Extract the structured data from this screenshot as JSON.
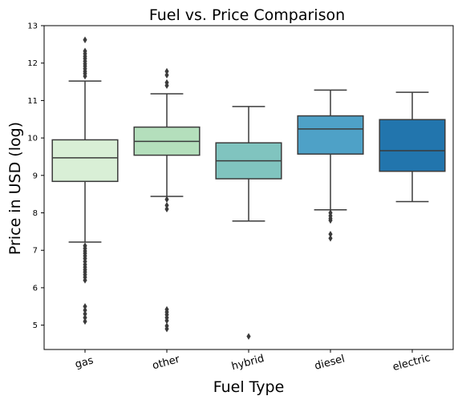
{
  "chart_data": {
    "type": "box",
    "title": "Fuel vs. Price Comparison",
    "xlabel": "Fuel Type",
    "ylabel": "Price in USD (log)",
    "ylim": [
      4.35,
      13.0
    ],
    "yticks": [
      5,
      6,
      7,
      8,
      9,
      10,
      11,
      12,
      13
    ],
    "ytick_labels": [
      "5",
      "6",
      "7",
      "8",
      "9",
      "10",
      "11",
      "12",
      "13"
    ],
    "xtick_rotation_deg": -15,
    "grid": false,
    "categories": [
      "gas",
      "other",
      "hybrid",
      "diesel",
      "electric"
    ],
    "boxes": [
      {
        "category": "gas",
        "color": "#d9efd6",
        "whisker_low": 7.22,
        "q1": 8.84,
        "median": 9.47,
        "q3": 9.95,
        "whisker_high": 11.52,
        "fliers": [
          12.62,
          12.32,
          12.25,
          12.18,
          12.12,
          12.05,
          11.98,
          11.92,
          11.85,
          11.78,
          11.72,
          11.65,
          7.12,
          7.05,
          6.98,
          6.92,
          6.85,
          6.78,
          6.7,
          6.62,
          6.55,
          6.48,
          6.42,
          6.35,
          6.28,
          6.2,
          5.5,
          5.4,
          5.3,
          5.2,
          5.1
        ]
      },
      {
        "category": "other",
        "color": "#b4dfbc",
        "whisker_low": 8.44,
        "q1": 9.54,
        "median": 9.91,
        "q3": 10.29,
        "whisker_high": 11.18,
        "fliers": [
          11.78,
          11.68,
          11.48,
          11.4,
          8.36,
          8.2,
          8.1,
          5.42,
          5.35,
          5.28,
          5.2,
          5.12,
          4.98,
          4.9
        ]
      },
      {
        "category": "hybrid",
        "color": "#80c4bf",
        "whisker_low": 7.78,
        "q1": 8.91,
        "median": 9.39,
        "q3": 9.87,
        "whisker_high": 10.84,
        "fliers": [
          4.7
        ]
      },
      {
        "category": "diesel",
        "color": "#4ea1c7",
        "whisker_low": 8.08,
        "q1": 9.57,
        "median": 10.24,
        "q3": 10.59,
        "whisker_high": 11.28,
        "fliers": [
          8.0,
          7.92,
          7.85,
          7.8,
          7.43,
          7.32
        ]
      },
      {
        "category": "electric",
        "color": "#2275ad",
        "whisker_low": 8.3,
        "q1": 9.11,
        "median": 9.66,
        "q3": 10.49,
        "whisker_high": 11.22,
        "fliers": []
      }
    ]
  },
  "colors": {
    "line": "#3b3b3b",
    "axis": "#000000"
  }
}
